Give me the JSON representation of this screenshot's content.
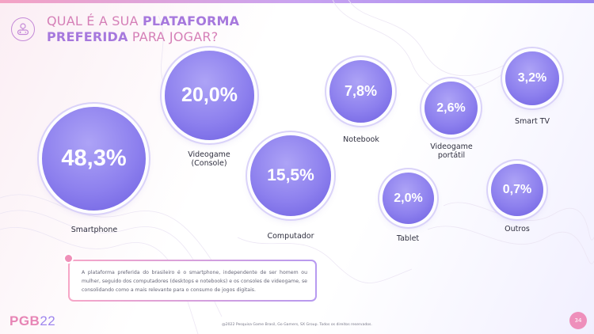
{
  "header": {
    "title_line1_pre": "QUAL É A SUA ",
    "title_line1_bold": "PLATAFORMA",
    "title_line2_bold": "PREFERIDA",
    "title_line2_post": " PARA JOGAR?"
  },
  "chart_data": {
    "type": "bubble",
    "title": "QUAL É A SUA PLATAFORMA PREFERIDA PARA JOGAR?",
    "categories": [
      "Smartphone",
      "Videogame (Console)",
      "Computador",
      "Notebook",
      "Videogame portátil",
      "Tablet",
      "Smart TV",
      "Outros"
    ],
    "values": [
      48.3,
      20.0,
      15.5,
      7.8,
      2.6,
      2.0,
      3.2,
      0.7
    ],
    "value_labels": [
      "48,3%",
      "20,0%",
      "15,5%",
      "7,8%",
      "2,6%",
      "2,0%",
      "3,2%",
      "0,7%"
    ],
    "label_lines": [
      [
        "Smartphone"
      ],
      [
        "Videogame",
        "(Console)"
      ],
      [
        "Computador"
      ],
      [
        "Notebook"
      ],
      [
        "Videogame",
        "portátil"
      ],
      [
        "Tablet"
      ],
      [
        "Smart TV"
      ],
      [
        "Outros"
      ]
    ],
    "grid": false,
    "legend": "none"
  },
  "note": {
    "text": "A plataforma preferida do brasileiro é o smartphone, independente de ser homem ou mulher, seguido dos computadores (desktops e notebooks) e os consoles de videogame, se consolidando como a mais relevante para o consumo de jogos digitais."
  },
  "logo": {
    "letters": "PGB",
    "year": "22"
  },
  "footer": {
    "text": "@2022 Pesquisa Game Brasil, Go Gamers, SX Group. Todos os direitos reservados."
  },
  "page_number": "34",
  "colors": {
    "accent_pink": "#e785b5",
    "accent_purple": "#9f86ee",
    "bubble": "#8d80ee"
  }
}
